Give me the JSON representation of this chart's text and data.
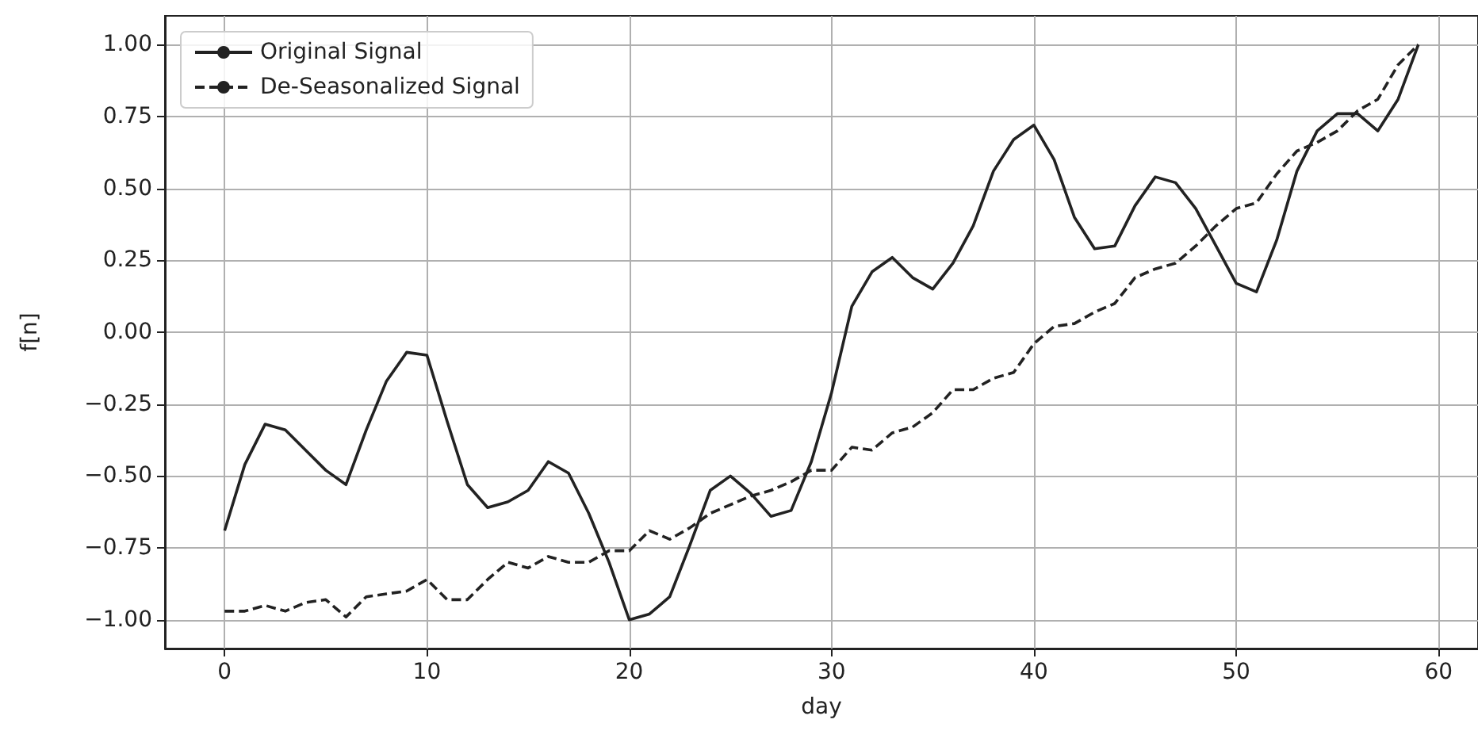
{
  "chart_data": {
    "type": "line",
    "xlabel": "day",
    "ylabel": "f[n]",
    "x": [
      0,
      1,
      2,
      3,
      4,
      5,
      6,
      7,
      8,
      9,
      10,
      11,
      12,
      13,
      14,
      15,
      16,
      17,
      18,
      19,
      20,
      21,
      22,
      23,
      24,
      25,
      26,
      27,
      28,
      29,
      30,
      31,
      32,
      33,
      34,
      35,
      36,
      37,
      38,
      39,
      40,
      41,
      42,
      43,
      44,
      45,
      46,
      47,
      48,
      49,
      50,
      51,
      52,
      53,
      54,
      55,
      56,
      57,
      58,
      59
    ],
    "series": [
      {
        "name": "Original Signal",
        "color": "#222222",
        "line_style": "solid",
        "values": [
          -0.69,
          -0.46,
          -0.32,
          -0.34,
          -0.41,
          -0.48,
          -0.53,
          -0.34,
          -0.17,
          -0.07,
          -0.08,
          -0.31,
          -0.53,
          -0.61,
          -0.59,
          -0.55,
          -0.45,
          -0.49,
          -0.63,
          -0.8,
          -1.0,
          -0.98,
          -0.92,
          -0.74,
          -0.55,
          -0.5,
          -0.56,
          -0.64,
          -0.62,
          -0.45,
          -0.21,
          0.09,
          0.21,
          0.26,
          0.19,
          0.15,
          0.24,
          0.37,
          0.56,
          0.67,
          0.72,
          0.6,
          0.4,
          0.29,
          0.3,
          0.44,
          0.54,
          0.52,
          0.43,
          0.3,
          0.17,
          0.14,
          0.32,
          0.56,
          0.7,
          0.76,
          0.76,
          0.7,
          0.81,
          1.0
        ]
      },
      {
        "name": "De-Seasonalized Signal",
        "color": "#222222",
        "line_style": "dashed",
        "values": [
          -0.97,
          -0.97,
          -0.95,
          -0.97,
          -0.94,
          -0.93,
          -0.99,
          -0.92,
          -0.91,
          -0.9,
          -0.86,
          -0.93,
          -0.93,
          -0.86,
          -0.8,
          -0.82,
          -0.78,
          -0.8,
          -0.8,
          -0.76,
          -0.76,
          -0.69,
          -0.72,
          -0.68,
          -0.63,
          -0.6,
          -0.57,
          -0.55,
          -0.52,
          -0.48,
          -0.48,
          -0.4,
          -0.41,
          -0.35,
          -0.33,
          -0.28,
          -0.2,
          -0.2,
          -0.16,
          -0.14,
          -0.04,
          0.02,
          0.03,
          0.07,
          0.1,
          0.19,
          0.22,
          0.24,
          0.3,
          0.37,
          0.43,
          0.45,
          0.55,
          0.63,
          0.66,
          0.7,
          0.77,
          0.81,
          0.93,
          1.0
        ]
      }
    ],
    "xlim": [
      -2.95,
      61.95
    ],
    "xticks": [
      0,
      10,
      20,
      30,
      40,
      50,
      60
    ],
    "ylim": [
      -1.1,
      1.1
    ],
    "yticks": [
      {
        "value": -1,
        "label": "−1.00"
      },
      {
        "value": -0.75,
        "label": "−0.75"
      },
      {
        "value": -0.5,
        "label": "−0.50"
      },
      {
        "value": -0.25,
        "label": "−0.25"
      },
      {
        "value": 0,
        "label": "0.00"
      },
      {
        "value": 0.25,
        "label": "0.25"
      },
      {
        "value": 0.5,
        "label": "0.50"
      },
      {
        "value": 0.75,
        "label": "0.75"
      },
      {
        "value": 1,
        "label": "1.00"
      }
    ],
    "grid": true,
    "legend": "top left",
    "marker": "none"
  }
}
